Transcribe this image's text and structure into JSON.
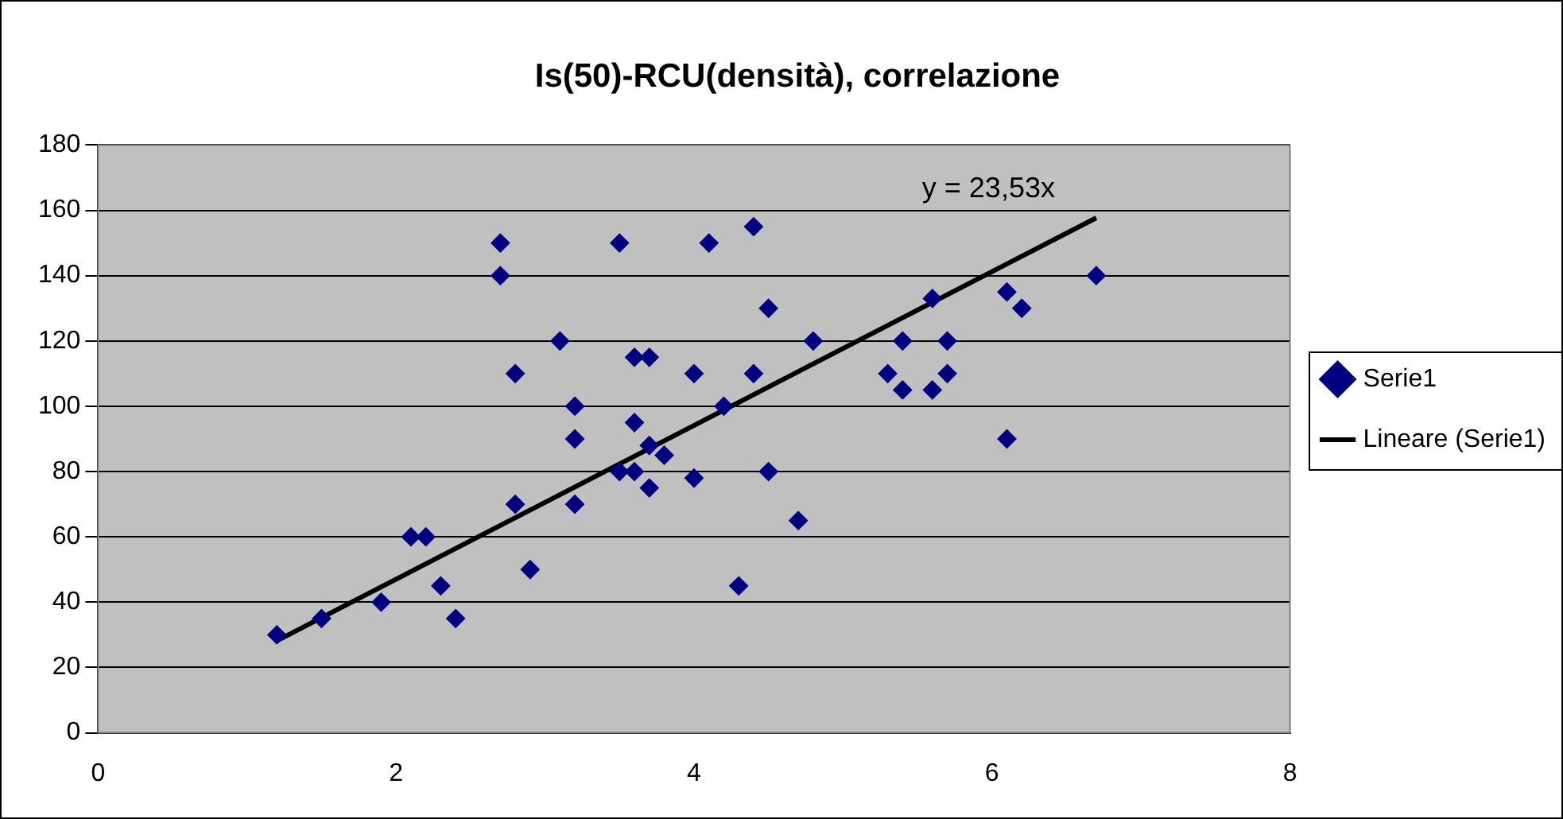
{
  "chart_data": {
    "type": "scatter",
    "title": "Is(50)-RCU(densità), correlazione",
    "xlim": [
      0,
      8
    ],
    "xticks": [
      0,
      2,
      4,
      6,
      8
    ],
    "ylim": [
      0,
      180
    ],
    "yticks": [
      0,
      20,
      40,
      60,
      80,
      100,
      120,
      140,
      160,
      180
    ],
    "grid": "y",
    "legend": "right",
    "annotations": [
      "y = 23,53x"
    ],
    "series": [
      {
        "name": "Serie1",
        "color": "#000080",
        "marker": "diamond",
        "x": [
          1.2,
          1.5,
          1.9,
          2.1,
          2.2,
          2.3,
          2.4,
          2.7,
          2.7,
          2.8,
          2.8,
          2.9,
          3.1,
          3.2,
          3.2,
          3.2,
          3.5,
          3.5,
          3.6,
          3.6,
          3.6,
          3.7,
          3.7,
          3.7,
          3.8,
          4.0,
          4.0,
          4.1,
          4.2,
          4.3,
          4.4,
          4.4,
          4.5,
          4.5,
          4.7,
          4.8,
          5.3,
          5.4,
          5.4,
          5.6,
          5.6,
          5.7,
          5.7,
          6.1,
          6.1,
          6.2,
          6.7
        ],
        "values": [
          30,
          35,
          40,
          60,
          60,
          45,
          35,
          150,
          140,
          110,
          70,
          50,
          120,
          100,
          90,
          70,
          150,
          80,
          115,
          95,
          80,
          115,
          88,
          75,
          85,
          110,
          78,
          150,
          100,
          45,
          155,
          110,
          130,
          80,
          65,
          120,
          110,
          120,
          105,
          133,
          105,
          120,
          110,
          135,
          90,
          130,
          140
        ]
      },
      {
        "name": "Lineare (Serie1)",
        "type": "line",
        "color": "#000000",
        "marker": "none",
        "x": [
          1.2,
          6.7
        ],
        "values": [
          28.2,
          157.7
        ]
      }
    ]
  }
}
